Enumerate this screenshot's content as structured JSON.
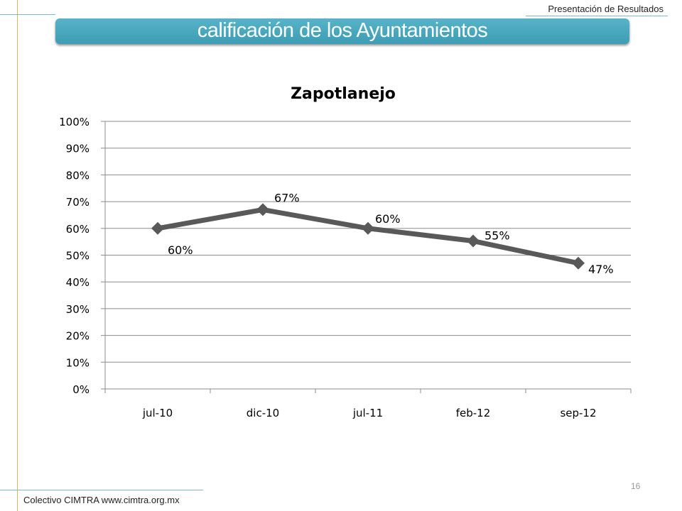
{
  "header": {
    "label": "Presentación de Resultados"
  },
  "banner": {
    "title": "calificación de los  Ayuntamientos"
  },
  "chart_data": {
    "type": "line",
    "title": "Zapotlanejo",
    "categories": [
      "jul-10",
      "dic-10",
      "jul-11",
      "feb-12",
      "sep-12"
    ],
    "series": [
      {
        "values": [
          0.6,
          0.67,
          0.6,
          0.553,
          0.47
        ],
        "labels": [
          "60%",
          "67%",
          "60%",
          "55%",
          "47%"
        ],
        "color": "#595959"
      }
    ],
    "ylim": [
      0,
      1
    ],
    "yticks": [
      "0%",
      "10%",
      "20%",
      "30%",
      "40%",
      "50%",
      "60%",
      "70%",
      "80%",
      "90%",
      "100%"
    ],
    "grid": true,
    "xlabel": "",
    "ylabel": ""
  },
  "footer": {
    "text": "Colectivo CIMTRA www.cimtra.org.mx",
    "page": "16"
  }
}
